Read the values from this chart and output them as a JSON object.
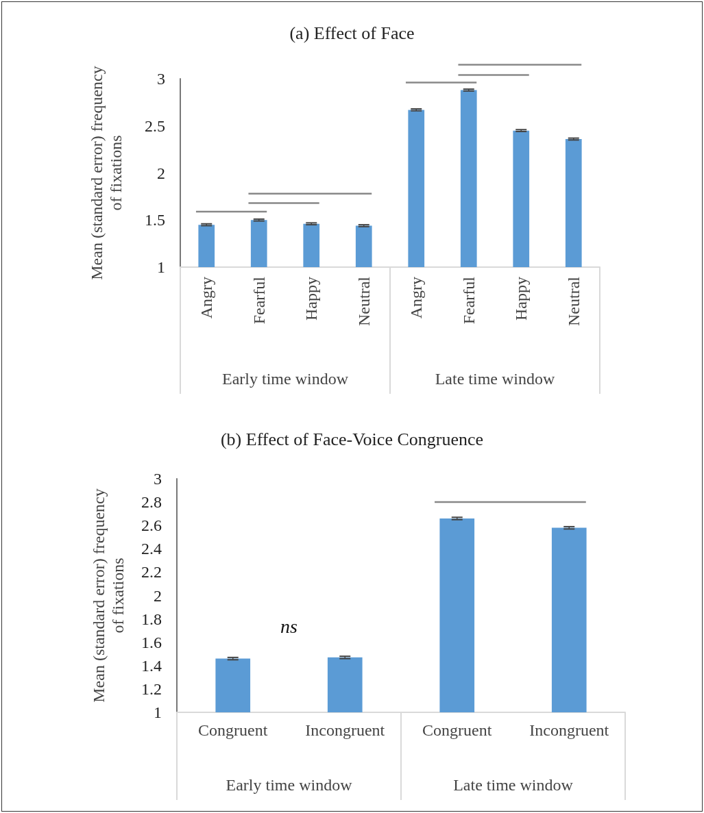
{
  "chart_data": [
    {
      "type": "bar",
      "title": "(a) Effect of Face",
      "ylabel": "Mean (standard error) frequency of fixations",
      "categories": [
        "Angry",
        "Fearful",
        "Happy",
        "Neutral",
        "Angry",
        "Fearful",
        "Happy",
        "Neutral"
      ],
      "values": [
        1.45,
        1.5,
        1.46,
        1.44,
        2.67,
        2.88,
        2.45,
        2.36
      ],
      "errors": [
        0.01,
        0.01,
        0.01,
        0.01,
        0.01,
        0.01,
        0.01,
        0.01
      ],
      "color": "#5b9bd5",
      "ylim": [
        1,
        3
      ],
      "yticks": [
        1,
        1.5,
        2,
        2.5,
        3
      ],
      "grid": false,
      "annotations": [
        "Early time window",
        "Late time window"
      ]
    },
    {
      "type": "bar",
      "title": "(b) Effect of Face-Voice Congruence",
      "ylabel": "Mean (standard error) frequency of fixations",
      "categories": [
        "Congruent",
        "Incongruent",
        "Congruent",
        "Incongruent"
      ],
      "values": [
        1.46,
        1.47,
        2.66,
        2.58
      ],
      "errors": [
        0.01,
        0.01,
        0.01,
        0.01
      ],
      "color": "#5b9bd5",
      "ylim": [
        1,
        3
      ],
      "yticks": [
        1,
        1.2,
        1.4,
        1.6,
        1.8,
        2,
        2.2,
        2.4,
        2.6,
        2.8,
        3
      ],
      "grid": false,
      "annotations": [
        "Early time window",
        "Late time window",
        "ns"
      ]
    }
  ]
}
